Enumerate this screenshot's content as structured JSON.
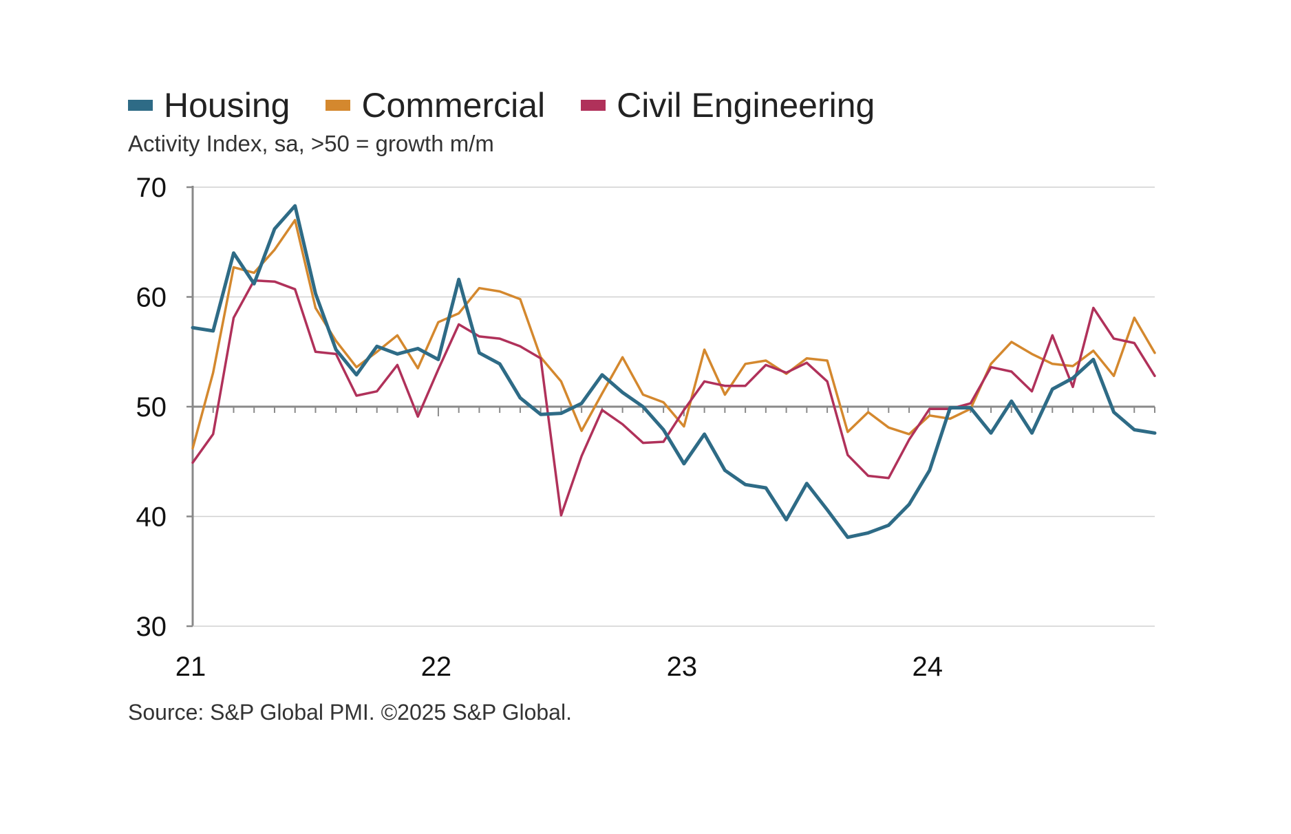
{
  "legend": [
    {
      "label": "Housing",
      "color": "#2e6b86"
    },
    {
      "label": "Commercial",
      "color": "#d4882e"
    },
    {
      "label": "Civil Engineering",
      "color": "#b0315a"
    }
  ],
  "subtitle": "Activity Index, sa, >50 = growth m/m",
  "source": "Source: S&P Global PMI. ©2025 S&P Global.",
  "chart_data": {
    "type": "line",
    "title": "",
    "xlabel": "",
    "ylabel": "",
    "ylim": [
      30,
      70
    ],
    "yticks": [
      30,
      40,
      50,
      60,
      70
    ],
    "reference_line": 50,
    "x_start": "2021-01",
    "x_end": "2024-12",
    "xtick_labels": [
      "21",
      "22",
      "23",
      "24"
    ],
    "grid": "horizontal",
    "legend_position": "top-left",
    "series": [
      {
        "name": "Housing",
        "color": "#2e6b86",
        "values": [
          57.2,
          56.9,
          64.0,
          61.2,
          66.2,
          68.3,
          60.3,
          55.2,
          52.9,
          55.5,
          54.8,
          55.3,
          54.3,
          61.6,
          54.9,
          53.9,
          50.8,
          49.3,
          49.4,
          50.3,
          52.9,
          51.3,
          50.0,
          47.9,
          44.8,
          47.5,
          44.2,
          42.9,
          42.6,
          39.7,
          43.0,
          40.6,
          38.1,
          38.5,
          39.2,
          41.1,
          44.2,
          49.9,
          49.9,
          47.6,
          50.5,
          47.6,
          51.6,
          52.6,
          54.3,
          49.5,
          47.9,
          47.6
        ]
      },
      {
        "name": "Commercial",
        "color": "#d4882e",
        "values": [
          46.2,
          53.1,
          62.7,
          62.2,
          64.3,
          67.0,
          59.0,
          56.0,
          53.6,
          55.0,
          56.5,
          53.5,
          57.7,
          58.5,
          60.8,
          60.5,
          59.8,
          54.5,
          52.3,
          47.8,
          51.2,
          54.5,
          51.1,
          50.4,
          48.2,
          55.2,
          51.1,
          53.9,
          54.2,
          53.0,
          54.4,
          54.2,
          47.7,
          49.5,
          48.1,
          47.5,
          49.2,
          48.9,
          49.8,
          53.9,
          55.9,
          54.8,
          53.9,
          53.7,
          55.1,
          52.8,
          58.1,
          54.9
        ]
      },
      {
        "name": "Civil Engineering",
        "color": "#b0315a",
        "values": [
          44.9,
          47.5,
          58.1,
          61.5,
          61.4,
          60.7,
          55.0,
          54.8,
          51.0,
          51.4,
          53.8,
          49.1,
          53.4,
          57.5,
          56.4,
          56.2,
          55.5,
          54.4,
          40.1,
          45.5,
          49.7,
          48.4,
          46.7,
          46.8,
          49.7,
          52.3,
          51.9,
          51.9,
          53.8,
          53.1,
          54.0,
          52.3,
          45.6,
          43.7,
          43.5,
          47.0,
          49.8,
          49.8,
          50.3,
          53.6,
          53.2,
          51.4,
          56.5,
          51.8,
          59.0,
          56.2,
          55.8,
          52.8
        ]
      }
    ]
  }
}
